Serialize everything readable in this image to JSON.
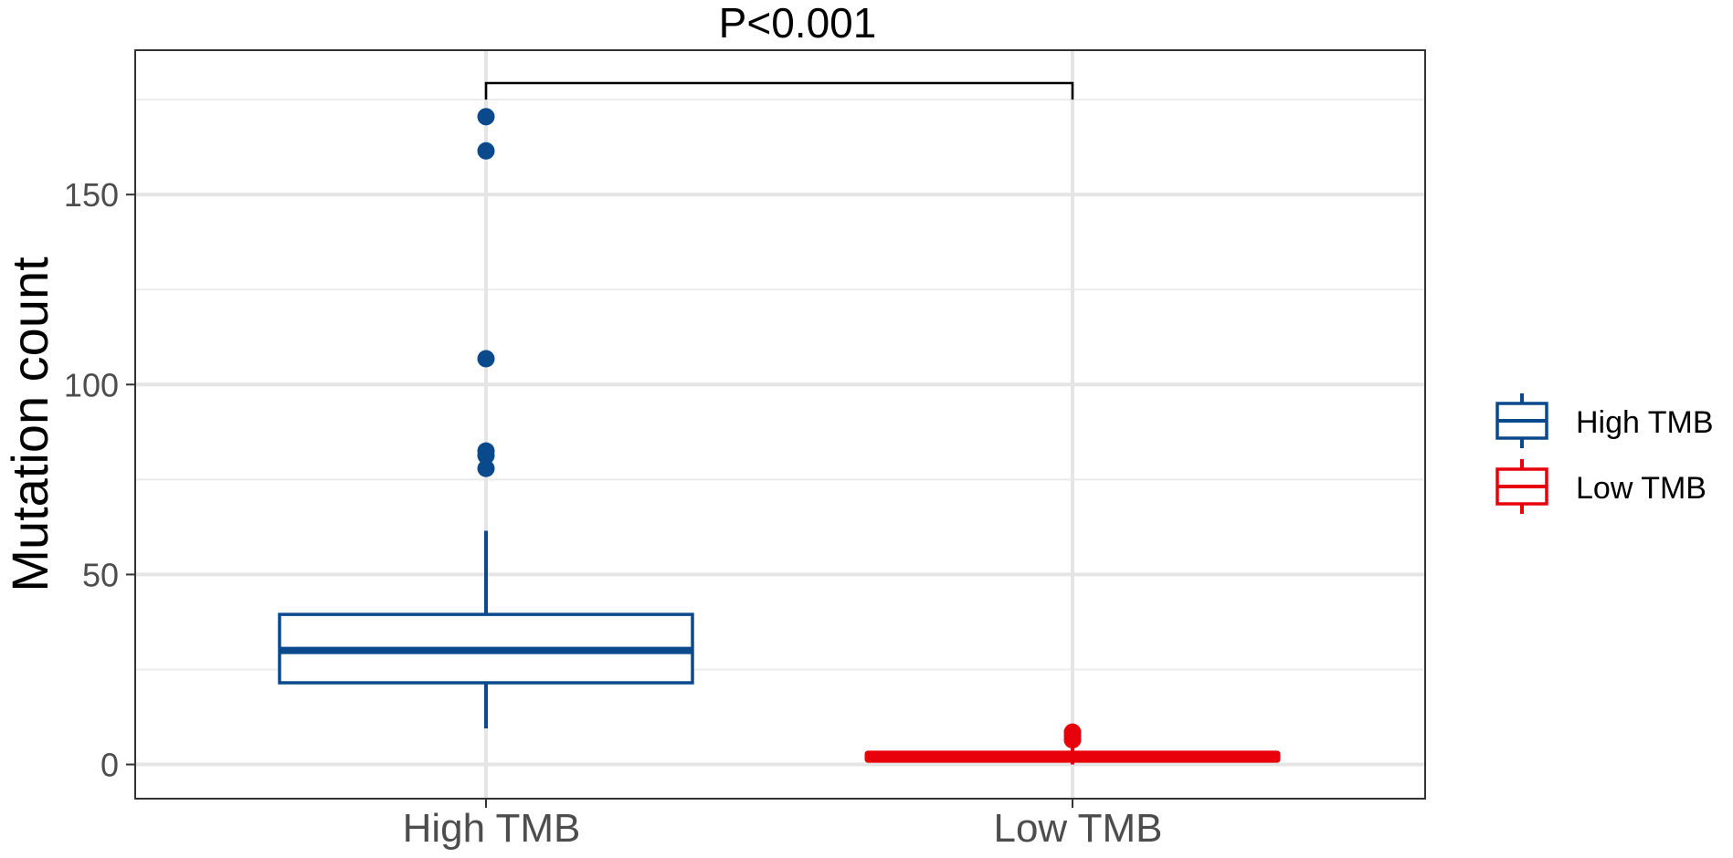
{
  "chart_data": {
    "type": "box",
    "annotation": "P<0.001",
    "ylabel": "Mutation count",
    "xlabel": "",
    "ylim": [
      -9,
      188
    ],
    "yticks": [
      0,
      50,
      100,
      150
    ],
    "yminor": [
      25,
      75,
      125,
      175
    ],
    "grid": true,
    "legend_position": "right",
    "categories": [
      "High TMB",
      "Low TMB"
    ],
    "series": [
      {
        "name": "High TMB",
        "color": "#0a4a8c",
        "q1": 21.5,
        "median": 30,
        "q3": 39.5,
        "whisker_low": 9.5,
        "whisker_high": 61.5,
        "outliers": [
          170.5,
          161.5,
          106.8,
          82.5,
          81.3,
          77.9
        ]
      },
      {
        "name": "Low TMB",
        "color": "#e8000b",
        "q1": 1.3,
        "median": 2,
        "q3": 2.8,
        "whisker_low": 0,
        "whisker_high": 5,
        "outliers": [
          6.5,
          7.5,
          8.5
        ]
      }
    ]
  }
}
